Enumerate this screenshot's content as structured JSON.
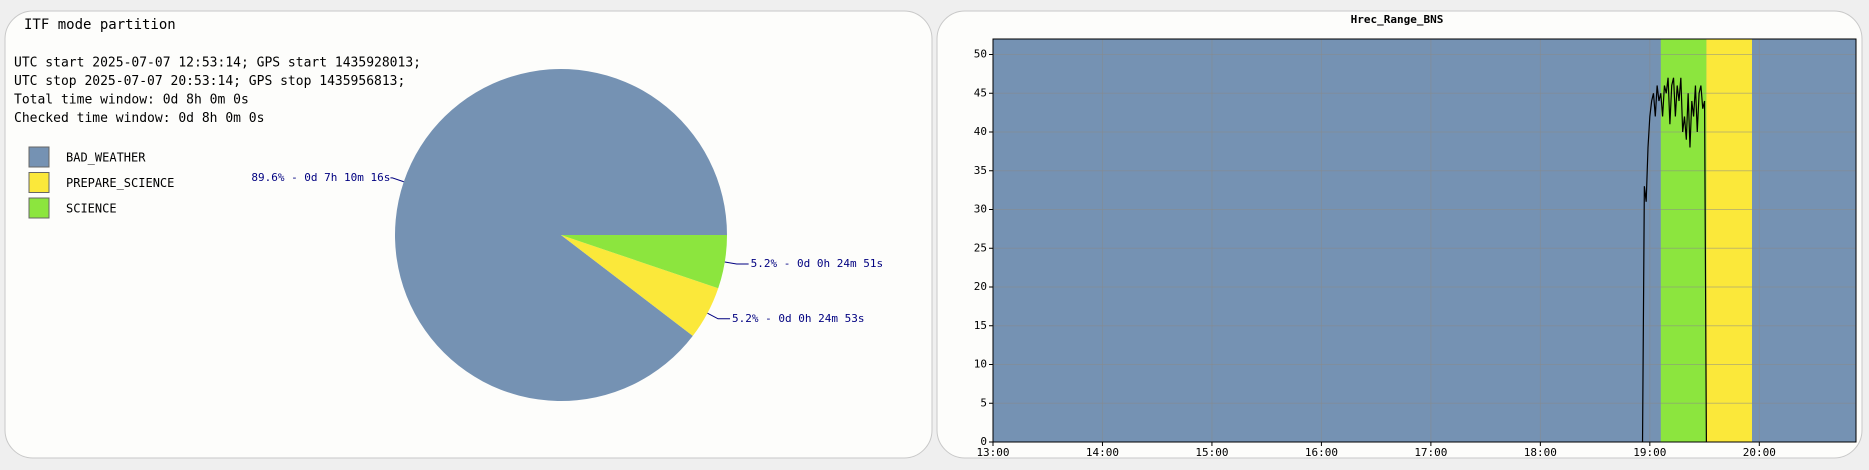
{
  "chart_data": [
    {
      "type": "pie",
      "title": "ITF mode partition",
      "info": [
        "UTC start 2025-07-07 12:53:14; GPS start 1435928013;",
        "UTC stop 2025-07-07 20:53:14; GPS stop 1435956813;",
        "Total time window: 0d 8h 0m 0s",
        "Checked time window: 0d 8h 0m 0s"
      ],
      "categories": [
        "BAD_WEATHER",
        "PREPARE_SCIENCE",
        "SCIENCE"
      ],
      "values": [
        89.6,
        5.2,
        5.2
      ],
      "value_labels": [
        "89.6% - 0d 7h 10m 16s",
        "5.2% - 0d 0h 24m 53s",
        "5.2% - 0d 0h 24m 51s"
      ],
      "colors": [
        "#7592b3",
        "#fbe83a",
        "#8ce53e"
      ]
    },
    {
      "type": "line",
      "title": "Hrec_Range_BNS",
      "bands": [
        {
          "start": "13:00",
          "end": "20:53",
          "color": "#7592b3"
        },
        {
          "start": "19:06",
          "end": "19:31",
          "color": "#8ce53e"
        },
        {
          "start": "19:31",
          "end": "19:56",
          "color": "#fbe83a"
        }
      ],
      "x": [
        "18:56",
        "18:57",
        "18:58",
        "18:59",
        "19:00",
        "19:01",
        "19:02",
        "19:03",
        "19:04",
        "19:05",
        "19:06",
        "19:07",
        "19:08",
        "19:09",
        "19:10",
        "19:11",
        "19:12",
        "19:13",
        "19:14",
        "19:15",
        "19:16",
        "19:17",
        "19:18",
        "19:19",
        "19:20",
        "19:21",
        "19:22",
        "19:23",
        "19:24",
        "19:25",
        "19:26",
        "19:27",
        "19:28",
        "19:29",
        "19:30",
        "19:31"
      ],
      "series": [
        {
          "color": "#000000",
          "values": [
            0,
            33,
            31,
            38,
            42,
            44,
            45,
            42,
            46,
            44,
            45,
            42,
            46,
            45,
            47,
            41,
            46,
            47,
            42,
            46,
            44,
            47,
            40,
            42,
            39,
            45,
            38,
            44,
            42,
            46,
            40,
            45,
            46,
            43,
            44,
            0
          ]
        }
      ],
      "xlim": [
        "13:00",
        "20:53"
      ],
      "xticks": [
        "13:00",
        "14:00",
        "15:00",
        "16:00",
        "17:00",
        "18:00",
        "19:00",
        "20:00"
      ],
      "ylim": [
        0,
        52
      ],
      "yticks": [
        0,
        5,
        10,
        15,
        20,
        25,
        30,
        35,
        40,
        45,
        50
      ],
      "grid": true
    }
  ]
}
